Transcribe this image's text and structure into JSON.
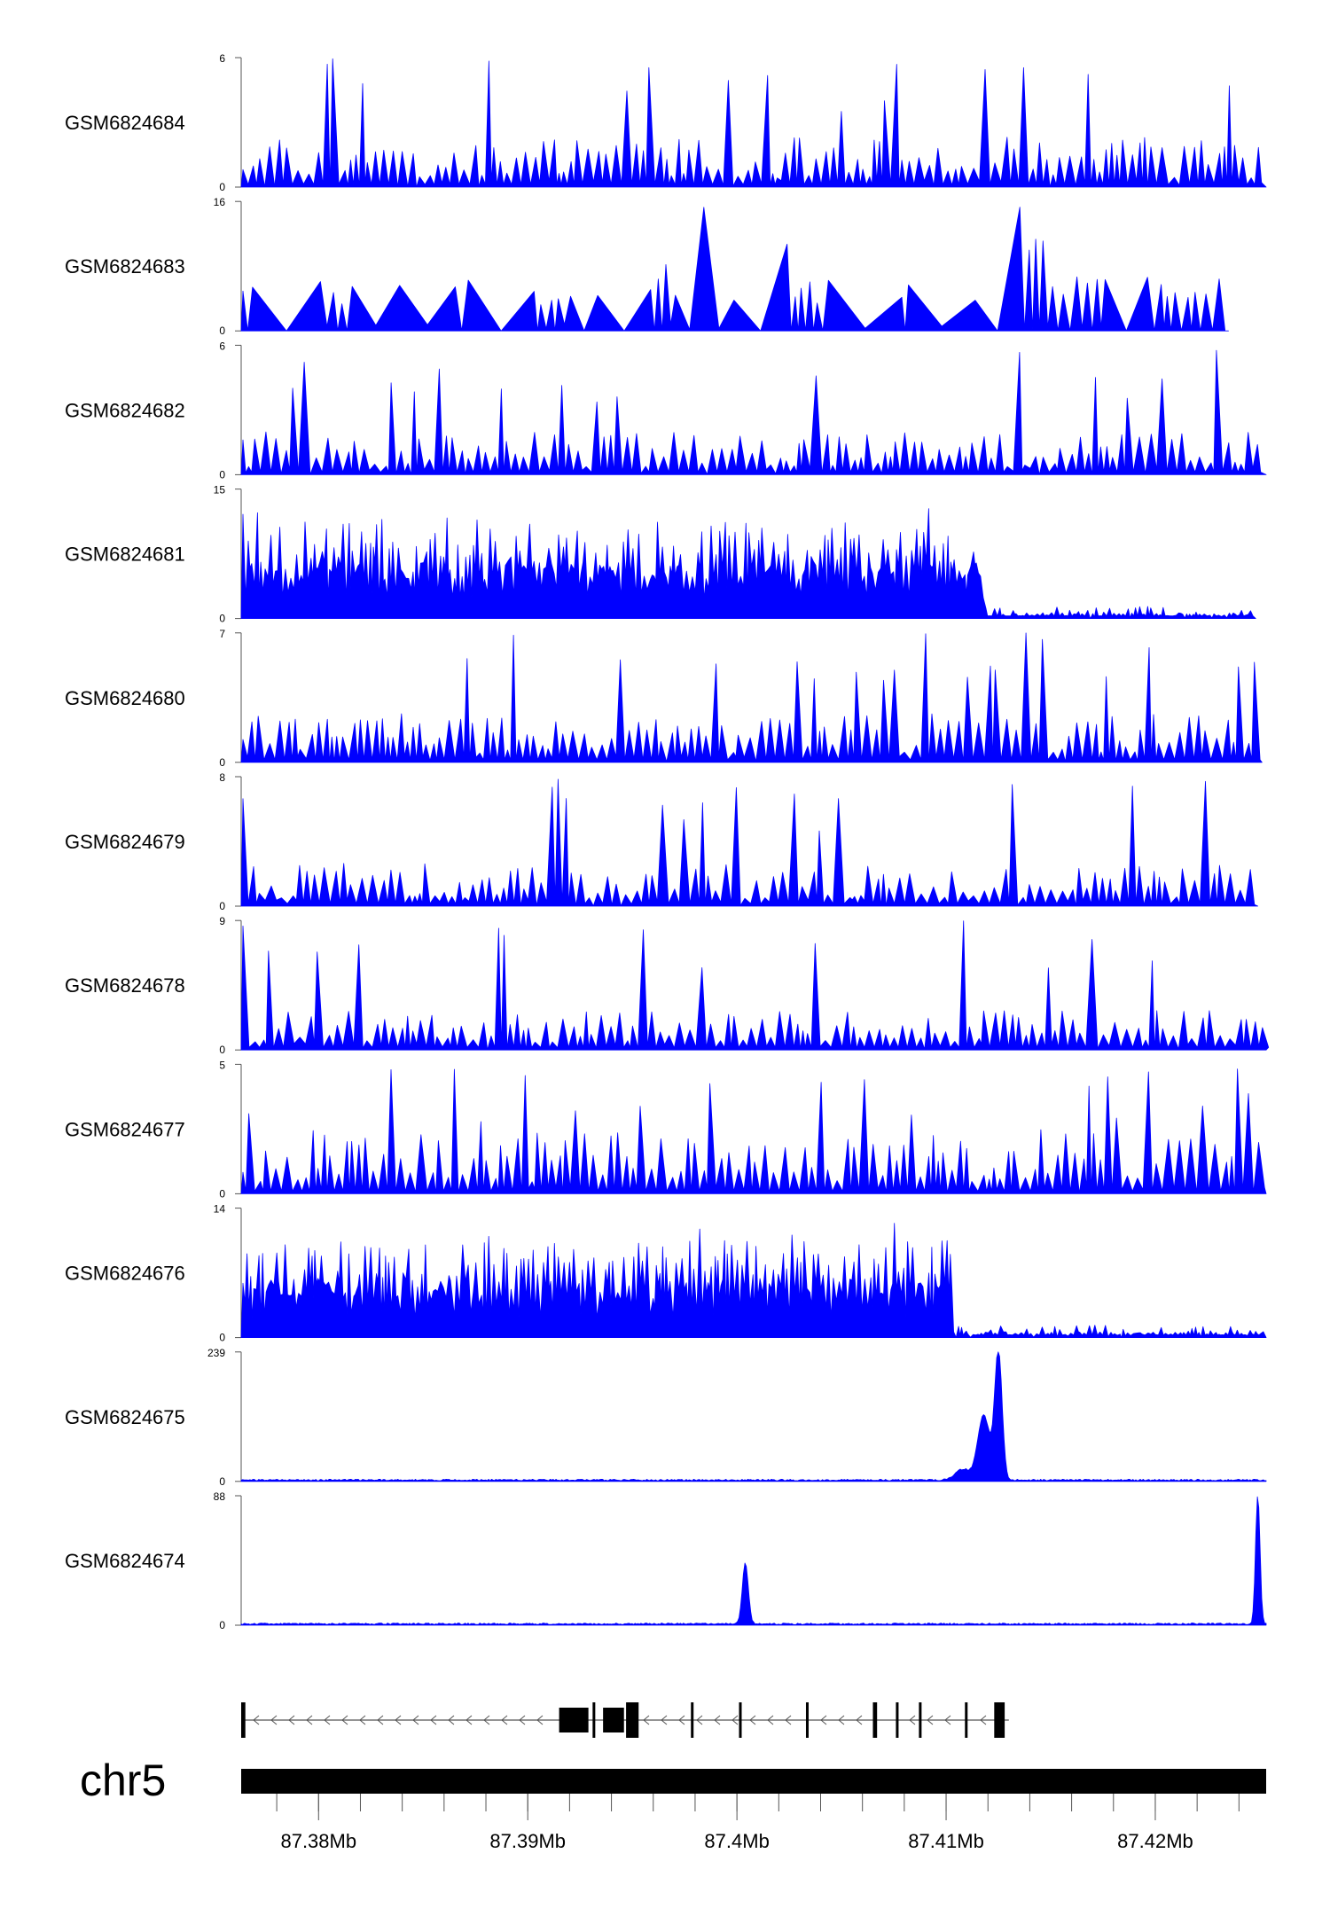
{
  "chart_data": {
    "type": "area",
    "title": "",
    "chromosome": "chr5",
    "x_range_mb": [
      87.3763,
      87.4253
    ],
    "x_ticks_mb": [
      87.38,
      87.39,
      87.4,
      87.41,
      87.42
    ],
    "x_tick_labels": [
      "87.38Mb",
      "87.39Mb",
      "87.4Mb",
      "87.41Mb",
      "87.42Mb"
    ],
    "minor_tick_step_mb": 0.002,
    "color": "#0000ff",
    "tracks": [
      {
        "name": "GSM6824684",
        "ymin": "0",
        "ymax": "6",
        "max": 6,
        "pattern": "uniform",
        "base": 0.35,
        "end_mb": 87.4253
      },
      {
        "name": "GSM6824683",
        "ymin": "0",
        "ymax": "16",
        "max": 16,
        "pattern": "sparse",
        "base": 0.28,
        "end_mb": 87.4235
      },
      {
        "name": "GSM6824682",
        "ymin": "0",
        "ymax": "6",
        "max": 6,
        "pattern": "uniform",
        "base": 0.3,
        "end_mb": 87.4253
      },
      {
        "name": "GSM6824681",
        "ymin": "0",
        "ymax": "15",
        "max": 15,
        "pattern": "highleft",
        "base": 0.5,
        "end_mb": 87.4248,
        "drop_mb": 87.4118
      },
      {
        "name": "GSM6824680",
        "ymin": "0",
        "ymax": "7",
        "max": 7,
        "pattern": "uniform",
        "base": 0.35,
        "end_mb": 87.4251
      },
      {
        "name": "GSM6824679",
        "ymin": "0",
        "ymax": "8",
        "max": 8,
        "pattern": "uniform",
        "base": 0.3,
        "end_mb": 87.4249
      },
      {
        "name": "GSM6824678",
        "ymin": "0",
        "ymax": "9",
        "max": 9,
        "pattern": "uniform",
        "base": 0.28,
        "end_mb": 87.4253
      },
      {
        "name": "GSM6824677",
        "ymin": "0",
        "ymax": "5",
        "max": 5,
        "pattern": "uniform",
        "base": 0.45,
        "end_mb": 87.4253
      },
      {
        "name": "GSM6824676",
        "ymin": "0",
        "ymax": "14",
        "max": 14,
        "pattern": "highleft",
        "base": 0.45,
        "end_mb": 87.4253,
        "drop_mb": 87.4102
      },
      {
        "name": "GSM6824675",
        "ymin": "0",
        "ymax": "239",
        "max": 239,
        "pattern": "peaks",
        "end_mb": 87.4253,
        "peaks": [
          {
            "mb": 87.4125,
            "value": 239,
            "width_mb": 0.00025
          },
          {
            "mb": 87.4118,
            "value": 120,
            "width_mb": 0.0004
          },
          {
            "mb": 87.4108,
            "value": 20,
            "width_mb": 0.0005
          }
        ]
      },
      {
        "name": "GSM6824674",
        "ymin": "0",
        "ymax": "88",
        "max": 88,
        "pattern": "peaks",
        "end_mb": 87.4253,
        "peaks": [
          {
            "mb": 87.4004,
            "value": 42,
            "width_mb": 0.0002
          },
          {
            "mb": 87.4249,
            "value": 88,
            "width_mb": 0.00015
          }
        ]
      }
    ],
    "gene": {
      "strand": "-",
      "start_mb": 87.3763,
      "end_mb": 87.413,
      "exons": [
        {
          "start_mb": 87.3763,
          "end_mb": 87.3765
        },
        {
          "start_mb": 87.3915,
          "end_mb": 87.3929
        },
        {
          "start_mb": 87.3931,
          "end_mb": 87.3932
        },
        {
          "start_mb": 87.3936,
          "end_mb": 87.3946
        },
        {
          "start_mb": 87.3947,
          "end_mb": 87.3948
        },
        {
          "start_mb": 87.3948,
          "end_mb": 87.3953
        },
        {
          "start_mb": 87.3978,
          "end_mb": 87.3979
        },
        {
          "start_mb": 87.4001,
          "end_mb": 87.4002
        },
        {
          "start_mb": 87.4033,
          "end_mb": 87.4034
        },
        {
          "start_mb": 87.4065,
          "end_mb": 87.4067
        },
        {
          "start_mb": 87.4076,
          "end_mb": 87.4077
        },
        {
          "start_mb": 87.4087,
          "end_mb": 87.4088
        },
        {
          "start_mb": 87.4109,
          "end_mb": 87.411
        },
        {
          "start_mb": 87.4123,
          "end_mb": 87.4128
        }
      ]
    }
  }
}
